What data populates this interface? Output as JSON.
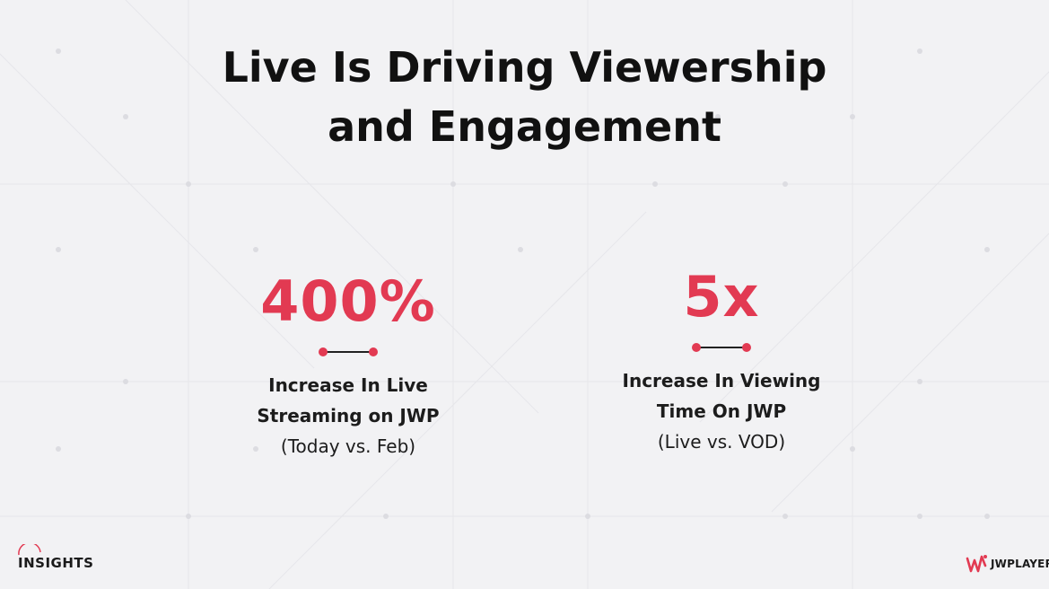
{
  "slide": {
    "title_line1": "Live Is Driving Viewership",
    "title_line2": "and Engagement"
  },
  "stats": [
    {
      "value": "400%",
      "label_line1": "Increase In Live",
      "label_line2": "Streaming on JWP",
      "note": "(Today vs. Feb)"
    },
    {
      "value": "5x",
      "label_line1": "Increase In Viewing",
      "label_line2": "Time On JWP",
      "note": "(Live vs. VOD)"
    }
  ],
  "footer": {
    "left_logo_text": "INSIGHTS",
    "right_logo_text": "JWPLAYER"
  },
  "colors": {
    "accent": "#e23a52",
    "text": "#111111",
    "background": "#f2f2f4"
  }
}
